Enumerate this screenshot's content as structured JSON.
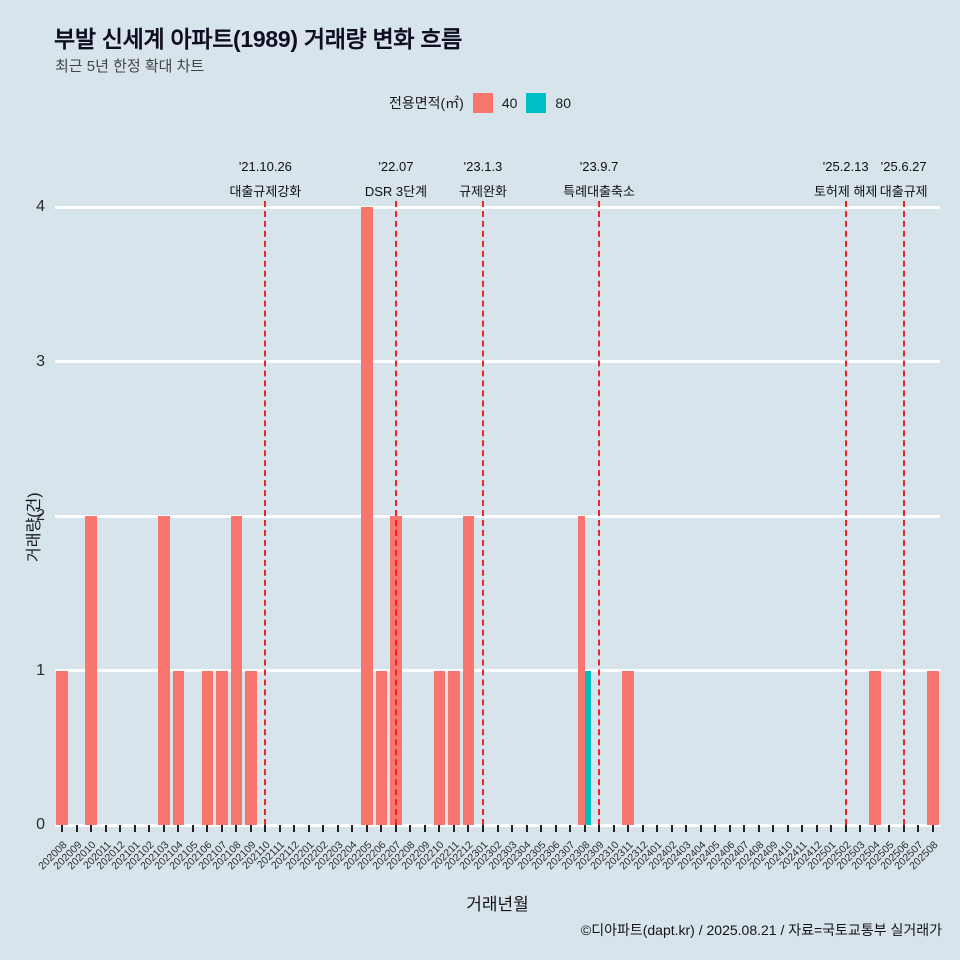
{
  "title": "부발 신세계 아파트(1989) 거래량 변화 흐름",
  "subtitle": "최근 5년 한정 확대 차트",
  "legend": {
    "label": "전용면적(㎡)",
    "items": [
      {
        "name": "40",
        "color": "#f8766d"
      },
      {
        "name": "80",
        "color": "#00bfc4"
      }
    ]
  },
  "colors": {
    "background": "#d8e4ec",
    "gridline": "#ffffff",
    "annotation_line": "#ef2424"
  },
  "footer": "©디아파트(dapt.kr) / 2025.08.21 / 자료=국토교통부 실거래가",
  "chart_data": {
    "type": "bar",
    "title": "부발 신세계 아파트(1989) 거래량 변화 흐름",
    "subtitle": "최근 5년 한정 확대 차트",
    "xlabel": "거래년월",
    "ylabel": "거래량(건)",
    "ylim": [
      0,
      4
    ],
    "yticks": [
      0,
      1,
      2,
      3,
      4
    ],
    "grid": true,
    "legend_position": "top",
    "x": [
      "202008",
      "202009",
      "202010",
      "202011",
      "202012",
      "202101",
      "202102",
      "202103",
      "202104",
      "202105",
      "202106",
      "202107",
      "202108",
      "202109",
      "202110",
      "202111",
      "202112",
      "202201",
      "202202",
      "202203",
      "202204",
      "202205",
      "202206",
      "202207",
      "202208",
      "202209",
      "202210",
      "202211",
      "202212",
      "202301",
      "202302",
      "202303",
      "202304",
      "202305",
      "202306",
      "202307",
      "202308",
      "202309",
      "202310",
      "202311",
      "202312",
      "202401",
      "202402",
      "202403",
      "202404",
      "202405",
      "202406",
      "202407",
      "202408",
      "202409",
      "202410",
      "202411",
      "202412",
      "202501",
      "202502",
      "202503",
      "202504",
      "202505",
      "202506",
      "202507",
      "202508"
    ],
    "series": [
      {
        "name": "40",
        "color": "#f8766d",
        "values": [
          1,
          0,
          2,
          0,
          0,
          0,
          0,
          2,
          1,
          0,
          1,
          1,
          2,
          1,
          0,
          0,
          0,
          0,
          0,
          0,
          0,
          4,
          1,
          2,
          0,
          0,
          1,
          1,
          2,
          0,
          0,
          0,
          0,
          0,
          0,
          0,
          2,
          0,
          0,
          1,
          0,
          0,
          0,
          0,
          0,
          0,
          0,
          0,
          0,
          0,
          0,
          0,
          0,
          0,
          0,
          0,
          1,
          0,
          0,
          0,
          1
        ]
      },
      {
        "name": "80",
        "color": "#00bfc4",
        "values": [
          0,
          0,
          0,
          0,
          0,
          0,
          0,
          0,
          0,
          0,
          0,
          0,
          0,
          0,
          0,
          0,
          0,
          0,
          0,
          0,
          0,
          0,
          0,
          0,
          0,
          0,
          0,
          0,
          0,
          0,
          0,
          0,
          0,
          0,
          0,
          0,
          1,
          0,
          0,
          0,
          0,
          0,
          0,
          0,
          0,
          0,
          0,
          0,
          0,
          0,
          0,
          0,
          0,
          0,
          0,
          0,
          0,
          0,
          0,
          0,
          0
        ]
      }
    ],
    "annotations": [
      {
        "month": "202110",
        "date": "'21.10.26",
        "label": "대출규제강화"
      },
      {
        "month": "202207",
        "date": "'22.07",
        "label": "DSR 3단계"
      },
      {
        "month": "202301",
        "date": "'23.1.3",
        "label": "규제완화"
      },
      {
        "month": "202309",
        "date": "'23.9.7",
        "label": "특례대출축소"
      },
      {
        "month": "202502",
        "date": "'25.2.13",
        "label": "토허제 해제"
      },
      {
        "month": "202506",
        "date": "'25.6.27",
        "label": "대출규제"
      }
    ]
  }
}
